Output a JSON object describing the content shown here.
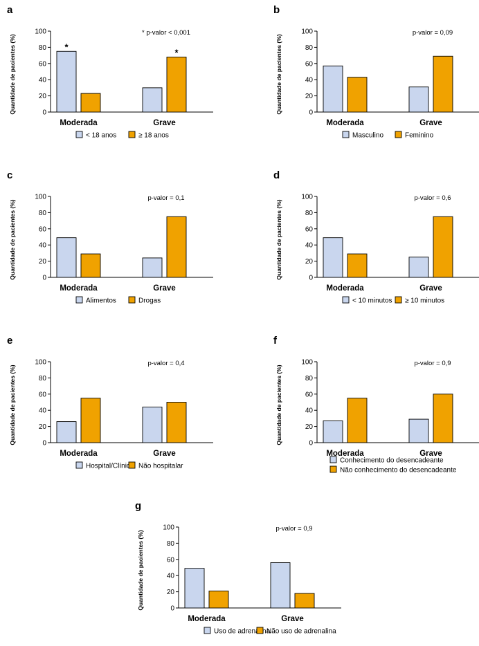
{
  "colors": {
    "series1": "#c9d6ee",
    "series2": "#f0a200",
    "stroke": "#000000"
  },
  "chart_data": [
    {
      "type": "bar",
      "letter": "a",
      "ylabel": "Quantidade de pacientes (%)",
      "ylim": [
        0,
        100
      ],
      "yticks": [
        0,
        20,
        40,
        60,
        80,
        100
      ],
      "categories": [
        "Moderada",
        "Grave"
      ],
      "series": [
        {
          "name": "< 18 anos",
          "values": [
            75,
            30
          ]
        },
        {
          "name": "≥ 18 anos",
          "values": [
            23,
            68
          ]
        }
      ],
      "annotation": "* p-valor < 0,001",
      "stars": [
        [
          "*",
          ""
        ],
        [
          "",
          "*"
        ]
      ],
      "legend_layout": "row"
    },
    {
      "type": "bar",
      "letter": "b",
      "ylabel": "Quantidade de pacientes (%)",
      "ylim": [
        0,
        100
      ],
      "yticks": [
        0,
        20,
        40,
        60,
        80,
        100
      ],
      "categories": [
        "Moderada",
        "Grave"
      ],
      "series": [
        {
          "name": "Masculino",
          "values": [
            57,
            31
          ]
        },
        {
          "name": "Feminino",
          "values": [
            43,
            69
          ]
        }
      ],
      "annotation": "p-valor = 0,09",
      "legend_layout": "row"
    },
    {
      "type": "bar",
      "letter": "c",
      "ylabel": "Quantidade de pacientes (%)",
      "ylim": [
        0,
        100
      ],
      "yticks": [
        0,
        20,
        40,
        60,
        80,
        100
      ],
      "categories": [
        "Moderada",
        "Grave"
      ],
      "series": [
        {
          "name": "Alimentos",
          "values": [
            49,
            24
          ]
        },
        {
          "name": "Drogas",
          "values": [
            29,
            75
          ]
        }
      ],
      "annotation": "p-valor = 0,1",
      "legend_layout": "row"
    },
    {
      "type": "bar",
      "letter": "d",
      "ylabel": "Quantidade de pacientes (%)",
      "ylim": [
        0,
        100
      ],
      "yticks": [
        0,
        20,
        40,
        60,
        80,
        100
      ],
      "categories": [
        "Moderada",
        "Grave"
      ],
      "series": [
        {
          "name": "< 10 minutos",
          "values": [
            49,
            25
          ]
        },
        {
          "name": "≥ 10 minutos",
          "values": [
            29,
            75
          ]
        }
      ],
      "annotation": "p-valor = 0,6",
      "legend_layout": "row"
    },
    {
      "type": "bar",
      "letter": "e",
      "ylabel": "Quantidade de pacientes (%)",
      "ylim": [
        0,
        100
      ],
      "yticks": [
        0,
        20,
        40,
        60,
        80,
        100
      ],
      "categories": [
        "Moderada",
        "Grave"
      ],
      "series": [
        {
          "name": "Hospital/Clínica",
          "values": [
            26,
            44
          ]
        },
        {
          "name": "Não hospitalar",
          "values": [
            55,
            50
          ]
        }
      ],
      "annotation": "p-valor = 0,4",
      "legend_layout": "row"
    },
    {
      "type": "bar",
      "letter": "f",
      "ylabel": "Quantidade de pacientes (%)",
      "ylim": [
        0,
        100
      ],
      "yticks": [
        0,
        20,
        40,
        60,
        80,
        100
      ],
      "categories": [
        "Moderada",
        "Grave"
      ],
      "series": [
        {
          "name": "Conhecimento do desencadeante",
          "values": [
            27,
            29
          ]
        },
        {
          "name": "Não conhecimento do desencadeante",
          "values": [
            55,
            60
          ]
        }
      ],
      "annotation": "p-valor = 0,9",
      "legend_layout": "column"
    },
    {
      "type": "bar",
      "letter": "g",
      "ylabel": "Quantidade de pacientes (%)",
      "ylim": [
        0,
        100
      ],
      "yticks": [
        0,
        20,
        40,
        60,
        80,
        100
      ],
      "categories": [
        "Moderada",
        "Grave"
      ],
      "series": [
        {
          "name": "Uso de adrenalina",
          "values": [
            49,
            56
          ]
        },
        {
          "name": "Não uso de adrenalina",
          "values": [
            21,
            18
          ]
        }
      ],
      "annotation": "p-valor = 0,9",
      "legend_layout": "row"
    }
  ]
}
